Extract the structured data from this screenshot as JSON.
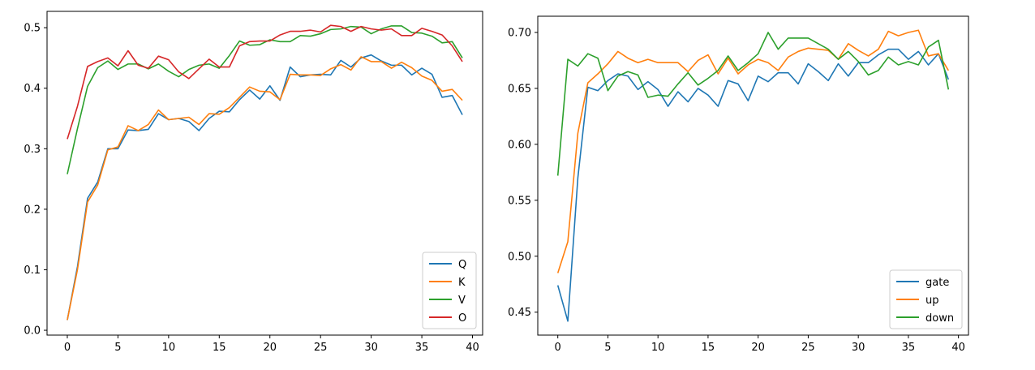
{
  "chart_data": [
    {
      "type": "line",
      "title": "",
      "xlabel": "",
      "ylabel": "",
      "xlim": [
        -2,
        41
      ],
      "ylim": [
        -0.008,
        0.527
      ],
      "xticks": [
        0,
        5,
        10,
        15,
        20,
        25,
        30,
        35,
        40
      ],
      "xtick_labels": [
        "0",
        "5",
        "10",
        "15",
        "20",
        "25",
        "30",
        "35",
        "40"
      ],
      "yticks": [
        0.0,
        0.1,
        0.2,
        0.3,
        0.4,
        0.5
      ],
      "ytick_labels": [
        "0.0",
        "0.1",
        "0.2",
        "0.3",
        "0.4",
        "0.5"
      ],
      "grid": false,
      "legend_position": "lower-right",
      "x": [
        0,
        1,
        2,
        3,
        4,
        5,
        6,
        7,
        8,
        9,
        10,
        11,
        12,
        13,
        14,
        15,
        16,
        17,
        18,
        19,
        20,
        21,
        22,
        23,
        24,
        25,
        26,
        27,
        28,
        29,
        30,
        31,
        32,
        33,
        34,
        35,
        36,
        37,
        38,
        39
      ],
      "series": [
        {
          "name": "Q",
          "color": "#1f77b4",
          "values": [
            0.017,
            0.105,
            0.218,
            0.245,
            0.3,
            0.3,
            0.331,
            0.33,
            0.332,
            0.358,
            0.348,
            0.35,
            0.345,
            0.33,
            0.35,
            0.362,
            0.361,
            0.381,
            0.397,
            0.382,
            0.404,
            0.38,
            0.435,
            0.419,
            0.422,
            0.423,
            0.422,
            0.446,
            0.435,
            0.45,
            0.455,
            0.445,
            0.438,
            0.438,
            0.422,
            0.433,
            0.423,
            0.385,
            0.388,
            0.356
          ]
        },
        {
          "name": "K",
          "color": "#ff7f0e",
          "values": [
            0.017,
            0.1,
            0.212,
            0.24,
            0.298,
            0.303,
            0.338,
            0.33,
            0.34,
            0.364,
            0.348,
            0.35,
            0.352,
            0.34,
            0.358,
            0.357,
            0.368,
            0.385,
            0.402,
            0.395,
            0.394,
            0.381,
            0.423,
            0.422,
            0.422,
            0.421,
            0.432,
            0.439,
            0.43,
            0.452,
            0.444,
            0.444,
            0.433,
            0.443,
            0.434,
            0.42,
            0.413,
            0.395,
            0.398,
            0.38
          ]
        },
        {
          "name": "V",
          "color": "#2ca02c",
          "values": [
            0.258,
            0.333,
            0.403,
            0.434,
            0.445,
            0.431,
            0.44,
            0.44,
            0.432,
            0.44,
            0.428,
            0.419,
            0.431,
            0.438,
            0.44,
            0.433,
            0.454,
            0.478,
            0.471,
            0.472,
            0.48,
            0.477,
            0.477,
            0.487,
            0.486,
            0.49,
            0.497,
            0.498,
            0.502,
            0.501,
            0.49,
            0.498,
            0.503,
            0.503,
            0.492,
            0.491,
            0.486,
            0.475,
            0.477,
            0.45
          ]
        },
        {
          "name": "O",
          "color": "#d62728",
          "values": [
            0.316,
            0.37,
            0.436,
            0.444,
            0.45,
            0.437,
            0.462,
            0.438,
            0.433,
            0.453,
            0.447,
            0.427,
            0.416,
            0.432,
            0.448,
            0.435,
            0.435,
            0.47,
            0.477,
            0.478,
            0.478,
            0.488,
            0.494,
            0.494,
            0.496,
            0.493,
            0.504,
            0.502,
            0.494,
            0.502,
            0.498,
            0.496,
            0.498,
            0.487,
            0.487,
            0.499,
            0.494,
            0.488,
            0.47,
            0.444
          ]
        }
      ]
    },
    {
      "type": "line",
      "title": "",
      "xlabel": "",
      "ylabel": "",
      "xlim": [
        -2,
        41
      ],
      "ylim": [
        0.4295,
        0.7145
      ],
      "xticks": [
        0,
        5,
        10,
        15,
        20,
        25,
        30,
        35,
        40
      ],
      "xtick_labels": [
        "0",
        "5",
        "10",
        "15",
        "20",
        "25",
        "30",
        "35",
        "40"
      ],
      "yticks": [
        0.45,
        0.5,
        0.55,
        0.6,
        0.65,
        0.7
      ],
      "ytick_labels": [
        "0.45",
        "0.50",
        "0.55",
        "0.60",
        "0.65",
        "0.70"
      ],
      "grid": false,
      "legend_position": "lower-right",
      "x": [
        0,
        1,
        2,
        3,
        4,
        5,
        6,
        7,
        8,
        9,
        10,
        11,
        12,
        13,
        14,
        15,
        16,
        17,
        18,
        19,
        20,
        21,
        22,
        23,
        24,
        25,
        26,
        27,
        28,
        29,
        30,
        31,
        32,
        33,
        34,
        35,
        36,
        37,
        38,
        39
      ],
      "series": [
        {
          "name": "gate",
          "color": "#1f77b4",
          "values": [
            0.474,
            0.442,
            0.57,
            0.651,
            0.648,
            0.657,
            0.663,
            0.661,
            0.649,
            0.656,
            0.649,
            0.634,
            0.647,
            0.638,
            0.65,
            0.644,
            0.634,
            0.657,
            0.654,
            0.639,
            0.661,
            0.656,
            0.664,
            0.664,
            0.654,
            0.672,
            0.665,
            0.657,
            0.672,
            0.661,
            0.673,
            0.673,
            0.68,
            0.685,
            0.685,
            0.676,
            0.683,
            0.671,
            0.681,
            0.658
          ]
        },
        {
          "name": "up",
          "color": "#ff7f0e",
          "values": [
            0.485,
            0.513,
            0.61,
            0.655,
            0.663,
            0.672,
            0.683,
            0.677,
            0.673,
            0.676,
            0.673,
            0.673,
            0.673,
            0.665,
            0.675,
            0.68,
            0.663,
            0.677,
            0.663,
            0.671,
            0.676,
            0.673,
            0.666,
            0.678,
            0.683,
            0.686,
            0.685,
            0.684,
            0.676,
            0.69,
            0.684,
            0.679,
            0.685,
            0.701,
            0.697,
            0.7,
            0.702,
            0.679,
            0.681,
            0.666
          ]
        },
        {
          "name": "down",
          "color": "#2ca02c",
          "values": [
            0.572,
            0.676,
            0.67,
            0.681,
            0.677,
            0.648,
            0.661,
            0.665,
            0.662,
            0.642,
            0.644,
            0.643,
            0.654,
            0.664,
            0.653,
            0.659,
            0.666,
            0.679,
            0.666,
            0.673,
            0.681,
            0.7,
            0.685,
            0.695,
            0.695,
            0.695,
            0.69,
            0.685,
            0.676,
            0.683,
            0.674,
            0.662,
            0.666,
            0.678,
            0.671,
            0.674,
            0.671,
            0.687,
            0.693,
            0.649
          ]
        }
      ]
    }
  ]
}
